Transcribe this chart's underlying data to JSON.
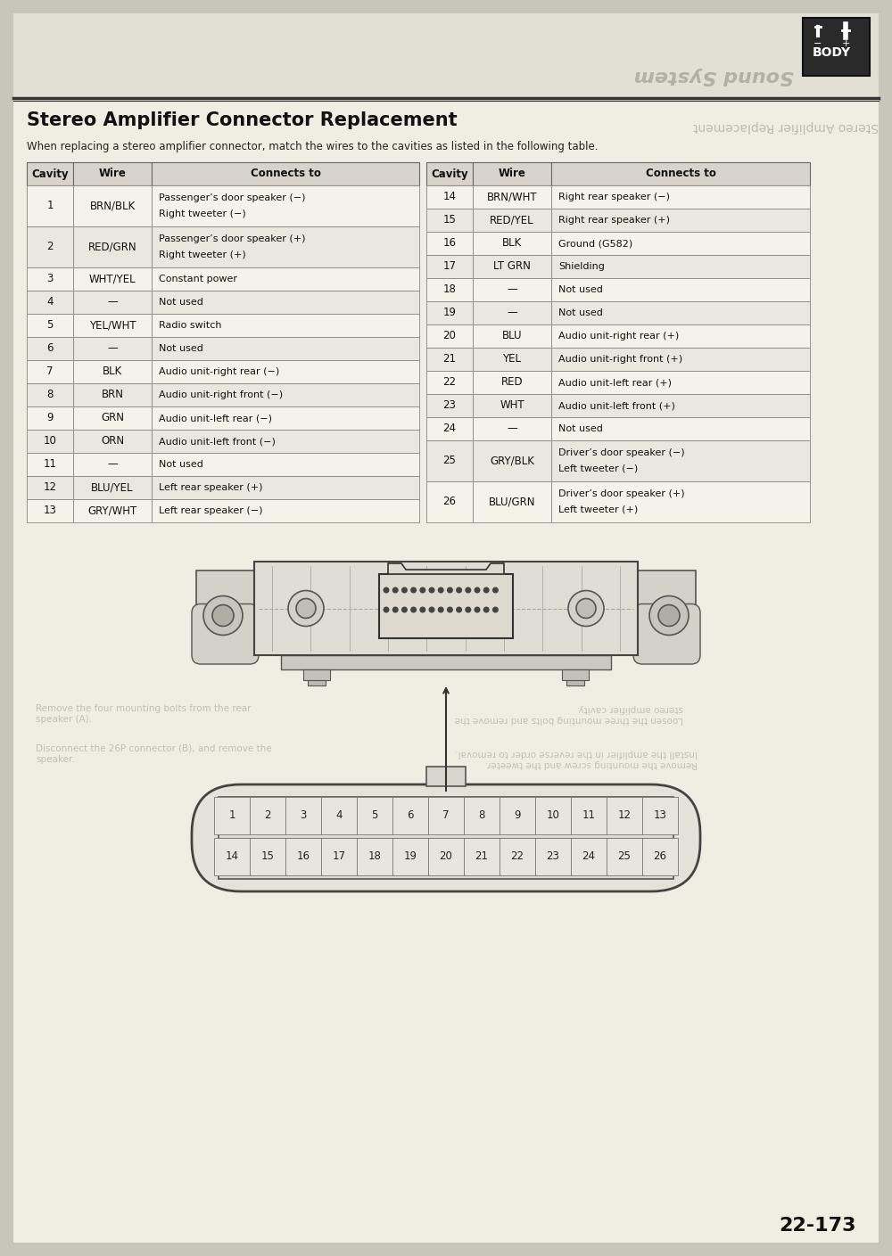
{
  "title": "Stereo Amplifier Connector Replacement",
  "subtitle": "When replacing a stereo amplifier connector, match the wires to the cavities as listed in the following table.",
  "col_headers": [
    "Cavity",
    "Wire",
    "Connects to"
  ],
  "table_data": [
    {
      "cavity": "1",
      "wire": "BRN/BLK",
      "connects": "Passenger’s door speaker (−)\nRight tweeter (−)",
      "tall": true
    },
    {
      "cavity": "2",
      "wire": "RED/GRN",
      "connects": "Passenger’s door speaker (+)\nRight tweeter (+)",
      "tall": true
    },
    {
      "cavity": "3",
      "wire": "WHT/YEL",
      "connects": "Constant power",
      "tall": false
    },
    {
      "cavity": "4",
      "wire": "—",
      "connects": "Not used",
      "tall": false
    },
    {
      "cavity": "5",
      "wire": "YEL/WHT",
      "connects": "Radio switch",
      "tall": false
    },
    {
      "cavity": "6",
      "wire": "—",
      "connects": "Not used",
      "tall": false
    },
    {
      "cavity": "7",
      "wire": "BLK",
      "connects": "Audio unit-right rear (−)",
      "tall": false
    },
    {
      "cavity": "8",
      "wire": "BRN",
      "connects": "Audio unit-right front (−)",
      "tall": false
    },
    {
      "cavity": "9",
      "wire": "GRN",
      "connects": "Audio unit-left rear (−)",
      "tall": false
    },
    {
      "cavity": "10",
      "wire": "ORN",
      "connects": "Audio unit-left front (−)",
      "tall": false
    },
    {
      "cavity": "11",
      "wire": "—",
      "connects": "Not used",
      "tall": false
    },
    {
      "cavity": "12",
      "wire": "BLU/YEL",
      "connects": "Left rear speaker (+)",
      "tall": false
    },
    {
      "cavity": "13",
      "wire": "GRY/WHT",
      "connects": "Left rear speaker (−)",
      "tall": false
    },
    {
      "cavity": "14",
      "wire": "BRN/WHT",
      "connects": "Right rear speaker (−)",
      "tall": false
    },
    {
      "cavity": "15",
      "wire": "RED/YEL",
      "connects": "Right rear speaker (+)",
      "tall": false
    },
    {
      "cavity": "16",
      "wire": "BLK",
      "connects": "Ground (G582)",
      "tall": false
    },
    {
      "cavity": "17",
      "wire": "LT GRN",
      "connects": "Shielding",
      "tall": false
    },
    {
      "cavity": "18",
      "wire": "—",
      "connects": "Not used",
      "tall": false
    },
    {
      "cavity": "19",
      "wire": "—",
      "connects": "Not used",
      "tall": false
    },
    {
      "cavity": "20",
      "wire": "BLU",
      "connects": "Audio unit-right rear (+)",
      "tall": false
    },
    {
      "cavity": "21",
      "wire": "YEL",
      "connects": "Audio unit-right front (+)",
      "tall": false
    },
    {
      "cavity": "22",
      "wire": "RED",
      "connects": "Audio unit-left rear (+)",
      "tall": false
    },
    {
      "cavity": "23",
      "wire": "WHT",
      "connects": "Audio unit-left front (+)",
      "tall": false
    },
    {
      "cavity": "24",
      "wire": "—",
      "connects": "Not used",
      "tall": false
    },
    {
      "cavity": "25",
      "wire": "GRY/BLK",
      "connects": "Driver’s door speaker (−)\nLeft tweeter (−)",
      "tall": true
    },
    {
      "cavity": "26",
      "wire": "BLU/GRN",
      "connects": "Driver’s door speaker (+)\nLeft tweeter (+)",
      "tall": true
    }
  ],
  "page_number": "22-173",
  "body_label": "BODY",
  "sound_system_text": "Sound System",
  "mirror_title": "Stereo Amplifier Replacement"
}
